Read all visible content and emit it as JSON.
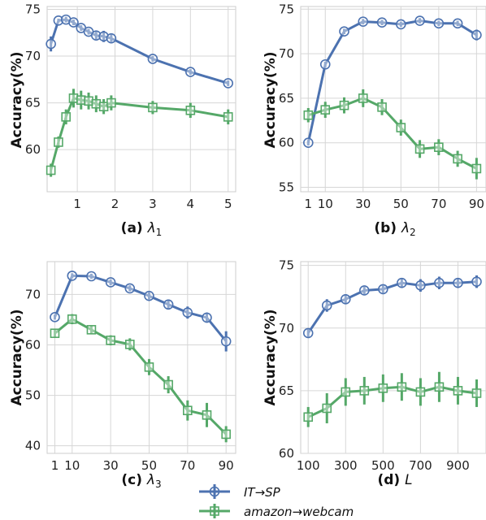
{
  "ylabel": "Accuracy(%)",
  "legend": {
    "series": [
      {
        "name": "IT→SP",
        "color": "#4c72b0",
        "marker": "circle"
      },
      {
        "name": "amazon→webcam",
        "color": "#55a868",
        "marker": "square"
      }
    ]
  },
  "chart_data": [
    {
      "type": "line",
      "caption_prefix": "(a) ",
      "caption_symbol": "λ",
      "caption_sub": "1",
      "xlim": [
        0.2,
        5.2
      ],
      "ylim": [
        55.5,
        75.3
      ],
      "xticks": [
        1,
        2,
        3,
        4,
        5
      ],
      "xtick_labels": [
        "1",
        "2",
        "3",
        "4",
        "5"
      ],
      "yticks": [
        60,
        65,
        70,
        75
      ],
      "series": [
        {
          "name": "IT→SP",
          "x": [
            0.3,
            0.5,
            0.7,
            0.9,
            1.1,
            1.3,
            1.5,
            1.7,
            1.9,
            3,
            4,
            5
          ],
          "y": [
            71.3,
            73.8,
            73.9,
            73.6,
            73.0,
            72.6,
            72.2,
            72.1,
            71.9,
            69.7,
            68.3,
            67.1
          ],
          "err": [
            0.8,
            0.2,
            0.3,
            0.3,
            0.3,
            0.3,
            0.4,
            0.6,
            0.4,
            0.3,
            0.3,
            0.3
          ]
        },
        {
          "name": "amazon→webcam",
          "x": [
            0.3,
            0.5,
            0.7,
            0.9,
            1.1,
            1.3,
            1.5,
            1.7,
            1.9,
            3,
            4,
            5
          ],
          "y": [
            57.8,
            60.8,
            63.5,
            65.5,
            65.3,
            65.2,
            64.9,
            64.6,
            65.0,
            64.5,
            64.2,
            63.5
          ],
          "err": [
            0.7,
            0.6,
            0.8,
            1.0,
            1.0,
            0.9,
            0.9,
            0.8,
            0.8,
            0.7,
            0.8,
            0.8
          ]
        }
      ]
    },
    {
      "type": "line",
      "caption_prefix": "(b) ",
      "caption_symbol": "λ",
      "caption_sub": "2",
      "xlim": [
        -3,
        95
      ],
      "ylim": [
        54.5,
        75.3
      ],
      "xticks": [
        1,
        10,
        30,
        50,
        70,
        90
      ],
      "xtick_labels": [
        "1",
        "10",
        "30",
        "50",
        "70",
        "90"
      ],
      "yticks": [
        55,
        60,
        65,
        70,
        75
      ],
      "series": [
        {
          "name": "IT→SP",
          "x": [
            1,
            10,
            20,
            30,
            40,
            50,
            60,
            70,
            80,
            90
          ],
          "y": [
            60.0,
            68.8,
            72.5,
            73.6,
            73.5,
            73.3,
            73.7,
            73.4,
            73.4,
            72.1
          ],
          "err": [
            0.3,
            0.3,
            0.3,
            0.3,
            0.3,
            0.3,
            0.3,
            0.3,
            0.3,
            0.6
          ]
        },
        {
          "name": "amazon→webcam",
          "x": [
            1,
            10,
            20,
            30,
            40,
            50,
            60,
            70,
            80,
            90
          ],
          "y": [
            63.1,
            63.7,
            64.2,
            65.0,
            64.0,
            61.7,
            59.3,
            59.5,
            58.2,
            57.1
          ],
          "err": [
            0.8,
            0.9,
            0.9,
            1.0,
            0.9,
            0.9,
            1.0,
            0.9,
            0.9,
            1.2
          ]
        }
      ]
    },
    {
      "type": "line",
      "caption_prefix": "(c) ",
      "caption_symbol": "λ",
      "caption_sub": "3",
      "xlim": [
        -3,
        95
      ],
      "ylim": [
        38.5,
        76.5
      ],
      "xticks": [
        1,
        10,
        30,
        50,
        70,
        90
      ],
      "xtick_labels": [
        "1",
        "10",
        "30",
        "50",
        "70",
        "90"
      ],
      "yticks": [
        40,
        50,
        60,
        70
      ],
      "series": [
        {
          "name": "IT→SP",
          "x": [
            1,
            10,
            20,
            30,
            40,
            50,
            60,
            70,
            80,
            90
          ],
          "y": [
            65.5,
            73.7,
            73.6,
            72.4,
            71.2,
            69.7,
            68.0,
            66.4,
            65.4,
            60.7
          ],
          "err": [
            0.5,
            0.5,
            0.5,
            0.6,
            0.6,
            0.7,
            1.0,
            1.2,
            1.0,
            2.0
          ]
        },
        {
          "name": "amazon→webcam",
          "x": [
            1,
            10,
            20,
            30,
            40,
            50,
            60,
            70,
            80,
            90
          ],
          "y": [
            62.3,
            65.1,
            63.0,
            60.9,
            60.1,
            55.6,
            52.1,
            47.0,
            46.1,
            42.3
          ],
          "err": [
            0.8,
            1.0,
            0.9,
            1.0,
            1.2,
            1.6,
            1.7,
            2.0,
            2.4,
            1.6
          ]
        }
      ]
    },
    {
      "type": "line",
      "caption_prefix": "(d) ",
      "caption_symbol": "L",
      "caption_sub": "",
      "xlim": [
        60,
        1050
      ],
      "ylim": [
        60,
        75.3
      ],
      "xticks": [
        100,
        300,
        500,
        700,
        900
      ],
      "xtick_labels": [
        "100",
        "300",
        "500",
        "700",
        "900"
      ],
      "yticks": [
        60,
        65,
        70,
        75
      ],
      "series": [
        {
          "name": "IT→SP",
          "x": [
            100,
            200,
            300,
            400,
            500,
            600,
            700,
            800,
            900,
            1000
          ],
          "y": [
            69.6,
            71.8,
            72.3,
            73.0,
            73.1,
            73.6,
            73.4,
            73.6,
            73.6,
            73.7
          ],
          "err": [
            0.3,
            0.5,
            0.4,
            0.3,
            0.3,
            0.4,
            0.5,
            0.5,
            0.4,
            0.5
          ]
        },
        {
          "name": "amazon→webcam",
          "x": [
            100,
            200,
            300,
            400,
            500,
            600,
            700,
            800,
            900,
            1000
          ],
          "y": [
            62.9,
            63.6,
            64.9,
            65.0,
            65.2,
            65.3,
            64.9,
            65.3,
            65.0,
            64.8
          ],
          "err": [
            0.8,
            1.2,
            1.1,
            1.1,
            1.1,
            1.1,
            1.1,
            1.2,
            1.1,
            1.1
          ]
        }
      ]
    }
  ]
}
